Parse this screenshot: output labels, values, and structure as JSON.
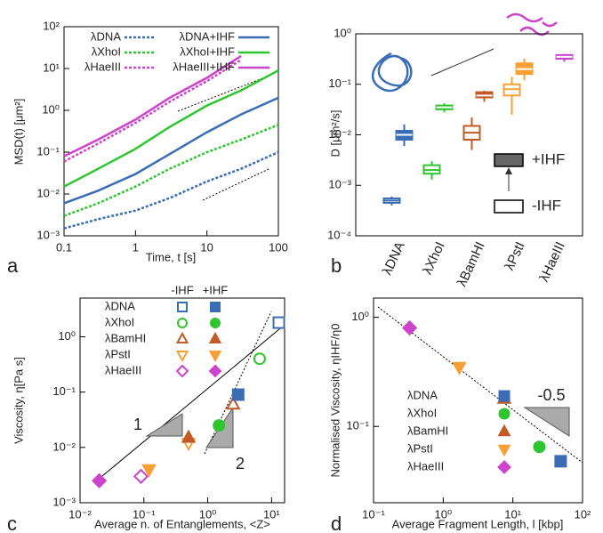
{
  "chart_data": [
    {
      "type": "line",
      "panel_label": "a",
      "xlabel": "Time, t [s]",
      "ylabel": "MSD(t) [μm²]",
      "xscale": "log",
      "yscale": "log",
      "x": [
        0.1,
        0.3,
        1,
        3,
        10,
        30,
        100
      ],
      "xlim": [
        0.1,
        100
      ],
      "xticks": [
        0.1,
        1,
        10,
        100
      ],
      "ylim": [
        0.001,
        100
      ],
      "yticks": [
        {
          "value": 0.001,
          "label": "10⁻³"
        },
        {
          "value": 0.01,
          "label": "10⁻²"
        },
        {
          "value": 0.1,
          "label": "10⁻¹"
        },
        {
          "value": 1,
          "label": "10⁰"
        },
        {
          "value": 10,
          "label": "10¹"
        },
        {
          "value": 100,
          "label": "10²"
        }
      ],
      "series": [
        {
          "name": "λDNA",
          "color": "#3a6db5",
          "dash": true,
          "values": [
            0.0015,
            0.0025,
            0.004,
            0.008,
            0.02,
            0.04,
            0.1
          ]
        },
        {
          "name": "λXhoI",
          "color": "#2ec52e",
          "dash": true,
          "values": [
            0.003,
            0.006,
            0.015,
            0.04,
            0.1,
            0.2,
            0.45
          ]
        },
        {
          "name": "λHaeIII",
          "color": "#cc44cc",
          "dash": true,
          "values": [
            0.06,
            0.16,
            0.5,
            1.6,
            5,
            16,
            null
          ]
        },
        {
          "name": "λDNA+IHF",
          "color": "#3a6db5",
          "dash": false,
          "values": [
            0.006,
            0.012,
            0.03,
            0.09,
            0.3,
            0.8,
            2
          ]
        },
        {
          "name": "λXhoI+IHF",
          "color": "#2ec52e",
          "dash": false,
          "values": [
            0.015,
            0.04,
            0.12,
            0.4,
            1.3,
            3,
            9
          ]
        },
        {
          "name": "λHaeIII+IHF",
          "color": "#cc44cc",
          "dash": false,
          "values": [
            0.08,
            0.2,
            0.6,
            2,
            6,
            20,
            null
          ]
        }
      ]
    },
    {
      "type": "box",
      "panel_label": "b",
      "ylabel": "D [μm²/s]",
      "yscale": "log",
      "categories": [
        "λDNA",
        "λXhoI",
        "λBamHI",
        "λPstI",
        "λHaeIII"
      ],
      "colors": [
        "#3a6db5",
        "#2ec52e",
        "#c25a26",
        "#f7a035",
        "#cc44cc"
      ],
      "ylim": [
        0.0001,
        1
      ],
      "yticks": [
        {
          "value": 0.0001,
          "label": "10⁻⁴"
        },
        {
          "value": 0.001,
          "label": "10⁻³"
        },
        {
          "value": 0.01,
          "label": "10⁻²"
        },
        {
          "value": 0.1,
          "label": "10⁻¹"
        },
        {
          "value": 1,
          "label": "10⁰"
        }
      ],
      "series": [
        {
          "name": "-IHF",
          "filled": false,
          "min": [
            0.0004,
            0.0013,
            0.005,
            0.025,
            null
          ],
          "q1": [
            0.00045,
            0.0017,
            0.008,
            0.06,
            null
          ],
          "median": [
            0.0005,
            0.002,
            0.011,
            0.08,
            null
          ],
          "q3": [
            0.00055,
            0.0025,
            0.015,
            0.1,
            null
          ],
          "max": [
            0.0006,
            0.003,
            0.022,
            0.14,
            null
          ]
        },
        {
          "name": "+IHF",
          "filled": true,
          "min": [
            0.006,
            0.028,
            0.045,
            0.12,
            0.28
          ],
          "q1": [
            0.008,
            0.032,
            0.055,
            0.16,
            0.32
          ],
          "median": [
            0.01,
            0.035,
            0.06,
            0.2,
            0.35
          ],
          "q3": [
            0.012,
            0.038,
            0.07,
            0.26,
            0.38
          ],
          "max": [
            0.016,
            0.042,
            0.075,
            0.32,
            0.4
          ]
        }
      ]
    },
    {
      "type": "scatter",
      "panel_label": "c",
      "xlabel": "Average n. of Entanglements, <Z>",
      "ylabel": "Viscosity, η[Pa s]",
      "xscale": "log",
      "yscale": "log",
      "categories": [
        "λDNA",
        "λXhoI",
        "λBamHI",
        "λPstI",
        "λHaeIII"
      ],
      "colors": [
        "#3a6db5",
        "#2ec52e",
        "#c25a26",
        "#f7a035",
        "#cc44cc"
      ],
      "markers": [
        "square",
        "circle",
        "triangle-up",
        "triangle-down",
        "diamond"
      ],
      "xlim": [
        0.01,
        16
      ],
      "xticks": [
        {
          "value": 0.01,
          "label": "10⁻²"
        },
        {
          "value": 0.1,
          "label": "10⁻¹"
        },
        {
          "value": 1,
          "label": "10⁰"
        },
        {
          "value": 10,
          "label": "10¹"
        }
      ],
      "ylim": [
        0.001,
        5
      ],
      "yticks": [
        {
          "value": 0.001,
          "label": "10⁻³"
        },
        {
          "value": 0.01,
          "label": "10⁻²"
        },
        {
          "value": 0.1,
          "label": "10⁻¹"
        },
        {
          "value": 1,
          "label": "10⁰"
        }
      ],
      "annotations": [
        "1",
        "2"
      ],
      "series": [
        {
          "name": "-IHF",
          "filled": false,
          "x": [
            13,
            6.5,
            2.5,
            0.5,
            0.09
          ],
          "values": [
            1.8,
            0.4,
            0.06,
            0.012,
            0.003
          ]
        },
        {
          "name": "+IHF",
          "filled": true,
          "x": [
            3,
            1.5,
            0.5,
            0.12,
            0.02
          ],
          "values": [
            0.09,
            0.025,
            0.015,
            0.004,
            0.0025
          ]
        }
      ]
    },
    {
      "type": "scatter",
      "panel_label": "d",
      "xlabel": "Average Fragment Length, l [kbp]",
      "ylabel": "Normalised Viscosity, ηIHF/η0",
      "xscale": "log",
      "yscale": "log",
      "categories": [
        "λDNA",
        "λXhoI",
        "λBamHI",
        "λPstI",
        "λHaeIII"
      ],
      "colors": [
        "#3a6db5",
        "#2ec52e",
        "#c25a26",
        "#f7a035",
        "#cc44cc"
      ],
      "markers": [
        "square",
        "circle",
        "triangle-up",
        "triangle-down",
        "diamond"
      ],
      "xlim": [
        0.1,
        100
      ],
      "xticks": [
        {
          "value": 0.1,
          "label": "10⁻¹"
        },
        {
          "value": 1,
          "label": "10⁰"
        },
        {
          "value": 10,
          "label": "10¹"
        },
        {
          "value": 100,
          "label": "10²"
        }
      ],
      "ylim": [
        0.02,
        1.5
      ],
      "yticks": [
        {
          "value": 0.1,
          "label": "10⁻¹"
        },
        {
          "value": 1,
          "label": "10⁰"
        }
      ],
      "annotations": [
        "-0.5"
      ],
      "series": [
        {
          "filled": true,
          "x": [
            48.5,
            24,
            7.5,
            1.7,
            0.33
          ],
          "values": [
            0.048,
            0.065,
            0.18,
            0.35,
            0.8
          ]
        }
      ]
    }
  ]
}
